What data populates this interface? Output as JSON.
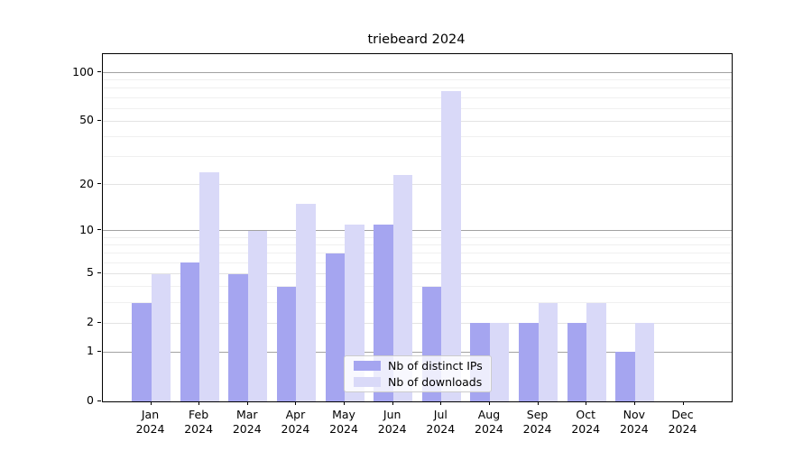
{
  "title": "triebeard 2024",
  "legend": {
    "items": [
      {
        "label": "Nb of distinct IPs",
        "color": "#a5a5f0"
      },
      {
        "label": "Nb of downloads",
        "color": "#d9d9f8"
      }
    ]
  },
  "chart_data": {
    "type": "bar",
    "title": "triebeard 2024",
    "categories": [
      "Jan 2024",
      "Feb 2024",
      "Mar 2024",
      "Apr 2024",
      "May 2024",
      "Jun 2024",
      "Jul 2024",
      "Aug 2024",
      "Sep 2024",
      "Oct 2024",
      "Nov 2024",
      "Dec 2024"
    ],
    "series": [
      {
        "name": "Nb of distinct IPs",
        "color": "#a5a5f0",
        "values": [
          3,
          6,
          5,
          4,
          7,
          11,
          4,
          2,
          2,
          2,
          1,
          0
        ]
      },
      {
        "name": "Nb of downloads",
        "color": "#d9d9f8",
        "values": [
          5,
          24,
          10,
          15,
          11,
          23,
          77,
          2,
          3,
          3,
          2,
          0
        ]
      }
    ],
    "xlabel": "",
    "ylabel": "",
    "yscale": "log1p",
    "y_ticks": [
      0,
      1,
      2,
      5,
      10,
      20,
      50,
      100
    ],
    "ylim": [
      0,
      130
    ],
    "grid": {
      "major_lines": [
        1,
        10,
        100
      ],
      "mid_lines": [
        2,
        5,
        20,
        50
      ],
      "minor_lines": [
        3,
        4,
        6,
        7,
        8,
        9,
        30,
        40,
        60,
        70,
        80,
        90
      ],
      "major_color": "#a2a2a2",
      "mid_color": "#e3e3e3",
      "minor_color": "#f0f0f0"
    },
    "legend_position": "lower-center"
  }
}
